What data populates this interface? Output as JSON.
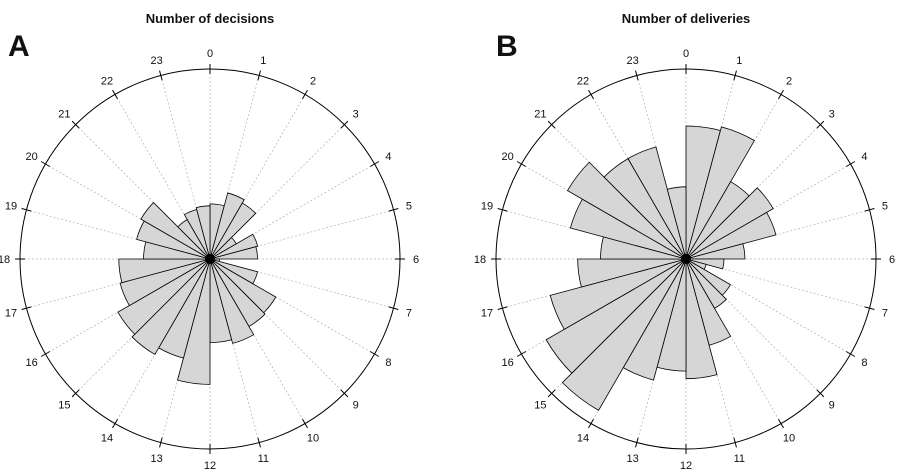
{
  "colors": {
    "wedge_fill": "#d6d6d6",
    "wedge_stroke": "#000000",
    "spoke": "#bbbbbb"
  },
  "chart_data": [
    {
      "type": "polar-bar",
      "panel_label": "A",
      "title": "Number of decisions",
      "categories": [
        "0",
        "1",
        "2",
        "3",
        "4",
        "5",
        "6",
        "7",
        "8",
        "9",
        "10",
        "11",
        "12",
        "13",
        "14",
        "15",
        "16",
        "17",
        "18",
        "19",
        "20",
        "21",
        "22",
        "23"
      ],
      "values": [
        0.29,
        0.36,
        0.34,
        0.16,
        0.26,
        0.25,
        0.05,
        0.26,
        0.4,
        0.41,
        0.46,
        0.44,
        0.66,
        0.54,
        0.58,
        0.56,
        0.49,
        0.48,
        0.35,
        0.4,
        0.42,
        0.24,
        0.27,
        0.28
      ],
      "rlim": [
        0,
        1
      ],
      "grid": true
    },
    {
      "type": "polar-bar",
      "panel_label": "B",
      "title": "Number of deliveries",
      "categories": [
        "0",
        "1",
        "2",
        "3",
        "4",
        "5",
        "6",
        "7",
        "8",
        "9",
        "10",
        "11",
        "12",
        "13",
        "14",
        "15",
        "16",
        "17",
        "18",
        "19",
        "20",
        "21",
        "22",
        "23"
      ],
      "values": [
        0.7,
        0.72,
        0.47,
        0.53,
        0.49,
        0.31,
        0.2,
        0.11,
        0.27,
        0.3,
        0.47,
        0.63,
        0.59,
        0.66,
        0.92,
        0.85,
        0.74,
        0.57,
        0.45,
        0.63,
        0.72,
        0.61,
        0.61,
        0.38
      ],
      "rlim": [
        0,
        1
      ],
      "grid": true
    }
  ]
}
